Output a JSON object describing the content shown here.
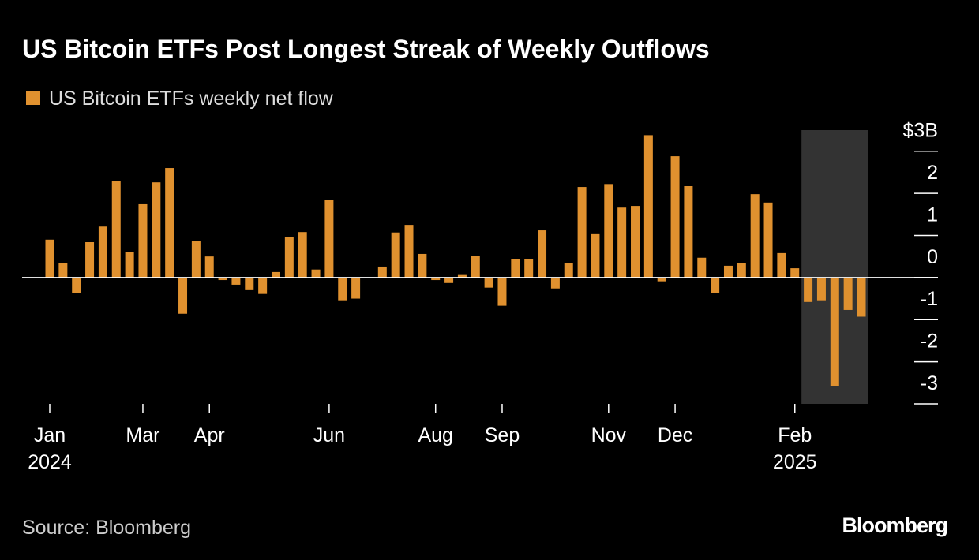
{
  "chart_data": {
    "type": "bar",
    "title": "US Bitcoin ETFs Post Longest Streak of Weekly Outflows",
    "categories": [
      "Jan 2024",
      null,
      null,
      null,
      null,
      null,
      null,
      "Mar",
      null,
      null,
      null,
      null,
      "Apr",
      null,
      null,
      null,
      null,
      null,
      null,
      null,
      null,
      "Jun",
      null,
      null,
      null,
      null,
      null,
      null,
      null,
      "Aug",
      null,
      null,
      null,
      null,
      "Sep",
      null,
      null,
      null,
      null,
      null,
      null,
      null,
      "Nov",
      null,
      null,
      null,
      null,
      "Dec",
      null,
      null,
      null,
      null,
      null,
      null,
      null,
      null,
      "Feb 2025",
      null,
      null,
      null,
      null,
      null
    ],
    "series": [
      {
        "name": "US Bitcoin ETFs weekly net flow",
        "color": "#e0912f",
        "values": [
          0.9,
          0.34,
          -0.37,
          0.84,
          1.21,
          2.3,
          0.6,
          1.74,
          2.26,
          2.6,
          -0.86,
          0.86,
          0.5,
          -0.06,
          -0.17,
          -0.3,
          -0.39,
          0.13,
          0.97,
          1.08,
          0.19,
          1.85,
          -0.54,
          -0.5,
          -0.02,
          0.26,
          1.07,
          1.25,
          0.56,
          -0.06,
          -0.13,
          0.06,
          0.52,
          -0.24,
          -0.67,
          0.43,
          0.43,
          1.12,
          -0.26,
          0.34,
          2.15,
          1.03,
          2.22,
          1.66,
          1.7,
          3.38,
          -0.09,
          2.88,
          2.17,
          0.47,
          -0.36,
          0.28,
          0.34,
          1.98,
          1.78,
          0.58,
          0.22,
          -0.58,
          -0.54,
          -2.58,
          -0.77,
          -0.93
        ]
      }
    ],
    "ylim": [
      -3,
      3.5
    ],
    "yticks": [
      {
        "value": 3,
        "label": "$3B"
      },
      2,
      1,
      0,
      -1,
      -2,
      -3
    ],
    "highlight": {
      "start": 57,
      "end": 61,
      "color": "#333333"
    },
    "source": "Source: Bloomberg",
    "brand": "Bloomberg"
  }
}
